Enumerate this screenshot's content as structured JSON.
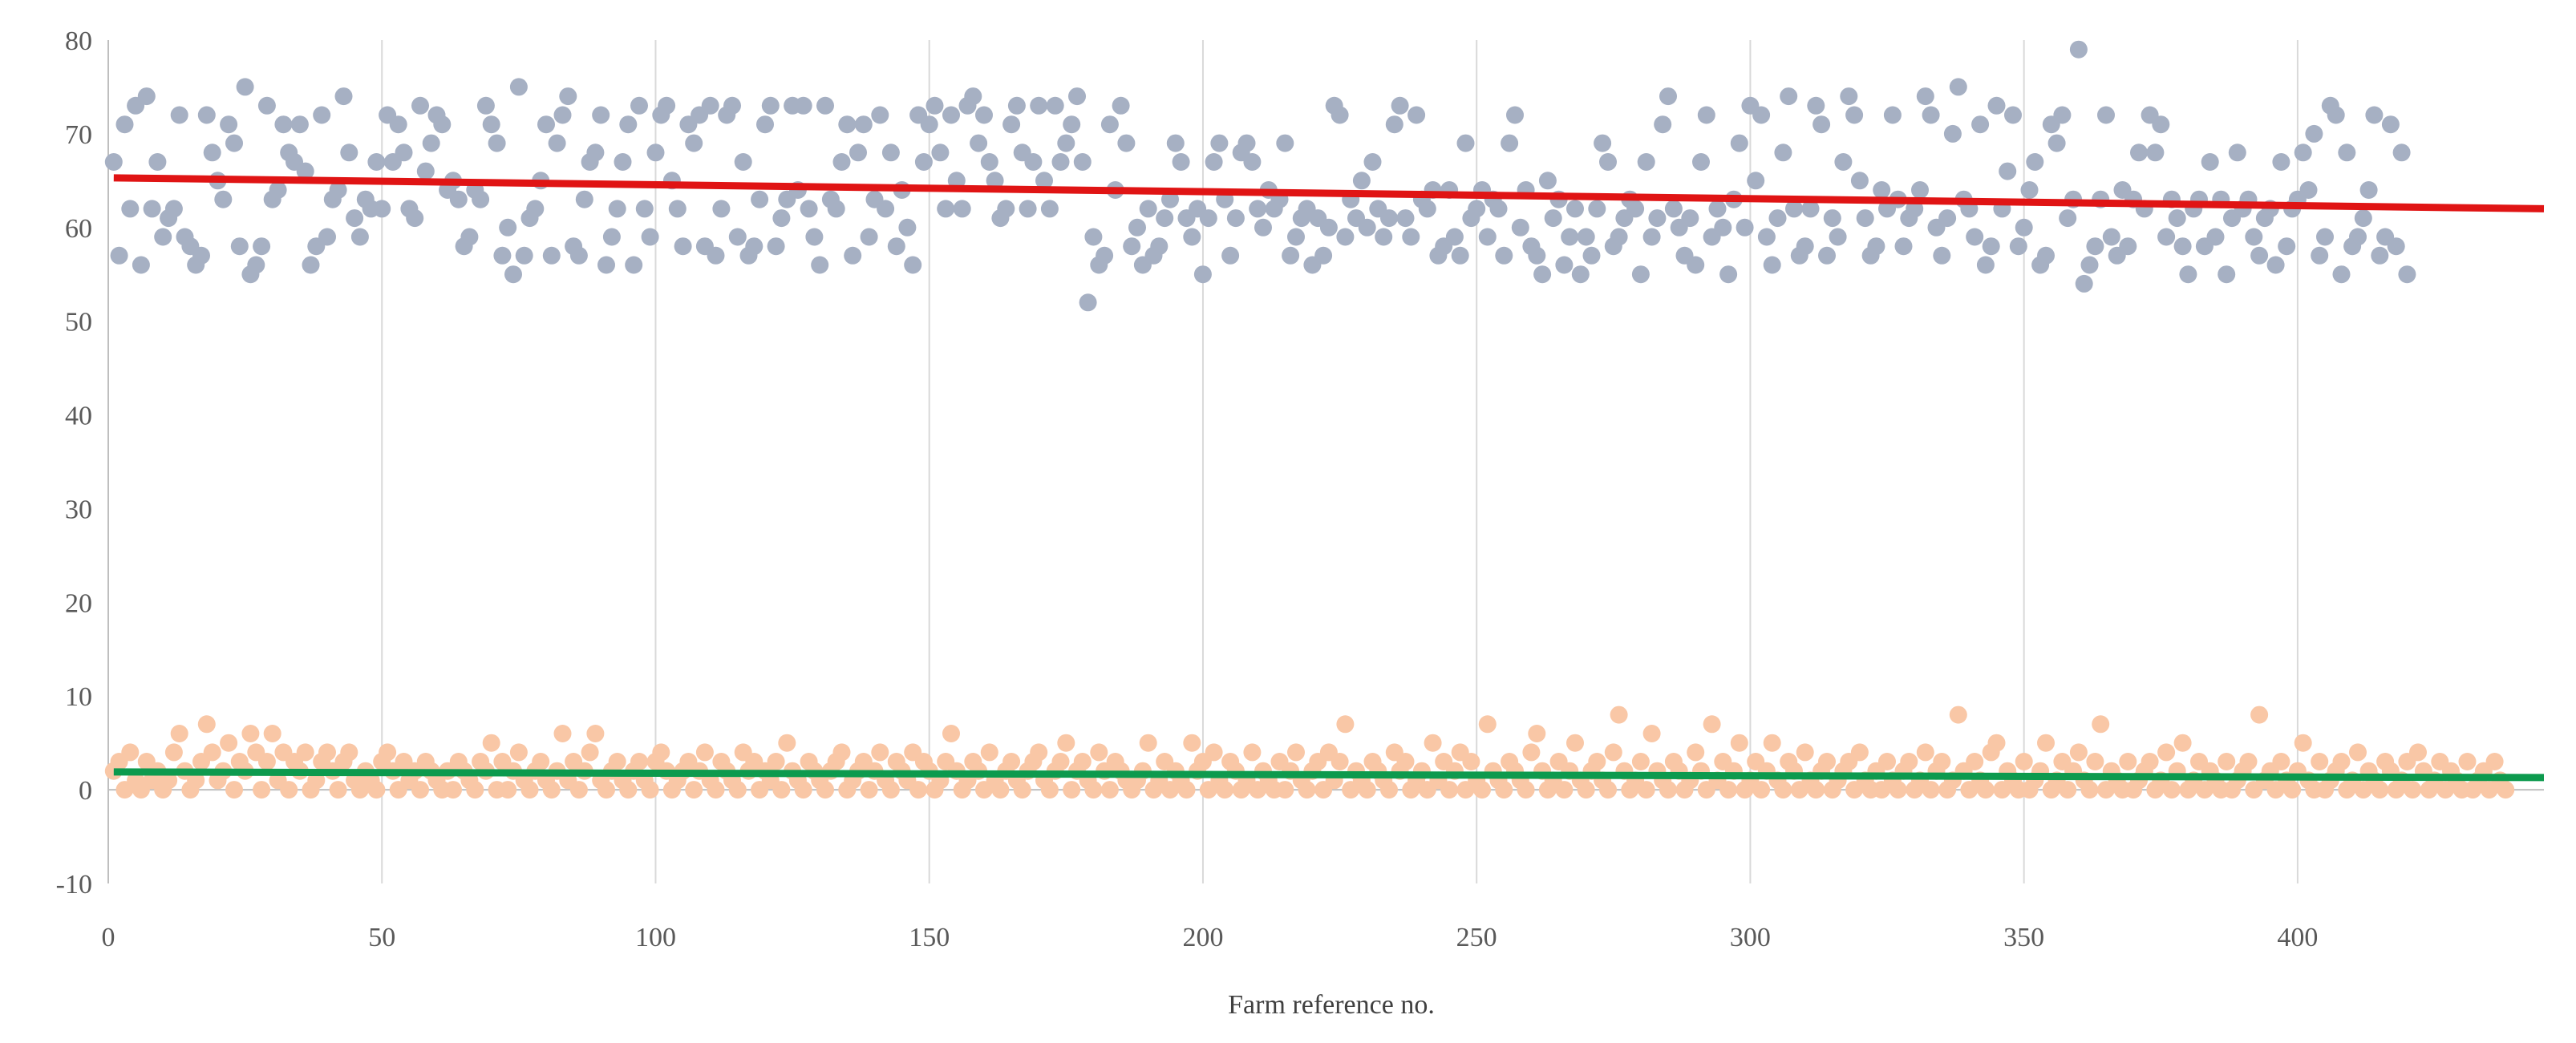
{
  "chart_data": {
    "type": "scatter",
    "title": "",
    "xlabel": "Farm reference no.",
    "ylabel": "",
    "xlim": [
      0,
      445
    ],
    "ylim": [
      -10,
      80
    ],
    "x_ticks": [
      0,
      50,
      100,
      150,
      200,
      250,
      300,
      350,
      400
    ],
    "y_ticks": [
      -10,
      0,
      10,
      20,
      30,
      40,
      50,
      60,
      70,
      80
    ],
    "grid": "vertical",
    "legend": "none",
    "colors": {
      "upper_points": "#a6b0c3",
      "lower_points": "#f9c7a6",
      "upper_trend": "#e01414",
      "lower_trend": "#0d9a4e",
      "grid": "#d9d9d9",
      "axis": "#bfbfbf"
    },
    "series": [
      {
        "role": "upper",
        "n": 445,
        "x_start": 1,
        "y": [
          67,
          57,
          71,
          62,
          73,
          56,
          74,
          62,
          67,
          59,
          61,
          62,
          72,
          59,
          58,
          56,
          57,
          72,
          68,
          65,
          63,
          71,
          69,
          58,
          75,
          55,
          56,
          58,
          73,
          63,
          64,
          71,
          68,
          67,
          71,
          66,
          56,
          58,
          72,
          59,
          63,
          64,
          74,
          68,
          61,
          59,
          63,
          62,
          67,
          62,
          72,
          67,
          71,
          68,
          62,
          61,
          73,
          66,
          69,
          72,
          71,
          64,
          65,
          63,
          58,
          59,
          64,
          63,
          73,
          71,
          69,
          57,
          60,
          55,
          75,
          57,
          61,
          62,
          65,
          71,
          57,
          69,
          72,
          74,
          58,
          57,
          63,
          67,
          68,
          72,
          56,
          59,
          62,
          67,
          71,
          56,
          73,
          62,
          59,
          68,
          72,
          73,
          65,
          62,
          58,
          71,
          69,
          72,
          58,
          73,
          57,
          62,
          72,
          73,
          59,
          67,
          57,
          58,
          63,
          71,
          73,
          58,
          61,
          63,
          73,
          64,
          73,
          62,
          59,
          56,
          73,
          63,
          62,
          67,
          71,
          57,
          68,
          71,
          59,
          63,
          72,
          62,
          68,
          58,
          64,
          60,
          56,
          72,
          67,
          71,
          73,
          68,
          62,
          72,
          65,
          62,
          73,
          74,
          69,
          72,
          67,
          65,
          61,
          62,
          71,
          73,
          68,
          62,
          67,
          73,
          65,
          62,
          73,
          67,
          69,
          71,
          74,
          67,
          52,
          59,
          56,
          57,
          71,
          64,
          73,
          69,
          58,
          60,
          56,
          62,
          57,
          58,
          61,
          63,
          69,
          67,
          61,
          59,
          62,
          55,
          61,
          67,
          69,
          63,
          57,
          61,
          68,
          69,
          67,
          62,
          60,
          64,
          62,
          63,
          69,
          57,
          59,
          61,
          62,
          56,
          61,
          57,
          60,
          73,
          72,
          59,
          63,
          61,
          65,
          60,
          67,
          62,
          59,
          61,
          71,
          73,
          61,
          59,
          72,
          63,
          62,
          64,
          57,
          58,
          64,
          59,
          57,
          69,
          61,
          62,
          64,
          59,
          63,
          62,
          57,
          69,
          72,
          60,
          64,
          58,
          57,
          55,
          65,
          61,
          63,
          56,
          59,
          62,
          55,
          59,
          57,
          62,
          69,
          67,
          58,
          59,
          61,
          63,
          62,
          55,
          67,
          59,
          61,
          71,
          74,
          62,
          60,
          57,
          61,
          56,
          67,
          72,
          59,
          62,
          60,
          55,
          63,
          69,
          60,
          73,
          65,
          72,
          59,
          56,
          61,
          68,
          74,
          62,
          57,
          58,
          62,
          73,
          71,
          57,
          61,
          59,
          67,
          74,
          72,
          65,
          61,
          57,
          58,
          64,
          62,
          72,
          63,
          58,
          61,
          62,
          64,
          74,
          72,
          60,
          57,
          61,
          70,
          75,
          63,
          62,
          59,
          71,
          56,
          58,
          73,
          62,
          66,
          72,
          58,
          60,
          64,
          67,
          56,
          57,
          71,
          69,
          72,
          61,
          63,
          79,
          54,
          56,
          58,
          63,
          72,
          59,
          57,
          64,
          58,
          63,
          68,
          62,
          72,
          68,
          71,
          59,
          63,
          61,
          58,
          55,
          62,
          63,
          58,
          67,
          59,
          63,
          55,
          61,
          68,
          62,
          63,
          59,
          57,
          61,
          62,
          56,
          67,
          58,
          62,
          63,
          68,
          64,
          70,
          57,
          59,
          73,
          72,
          55,
          68,
          58,
          59,
          61,
          64,
          72,
          57,
          59,
          71,
          58,
          68,
          55
        ]
      },
      {
        "role": "lower",
        "n": 445,
        "x_start": 1,
        "y": [
          2,
          3,
          0,
          4,
          1,
          0,
          3,
          1,
          2,
          0,
          1,
          4,
          6,
          2,
          0,
          1,
          3,
          7,
          4,
          1,
          2,
          5,
          0,
          3,
          2,
          6,
          4,
          0,
          3,
          6,
          1,
          4,
          0,
          3,
          2,
          4,
          0,
          1,
          3,
          4,
          2,
          0,
          3,
          4,
          1,
          0,
          2,
          1,
          0,
          3,
          4,
          2,
          0,
          3,
          1,
          2,
          0,
          3,
          2,
          1,
          0,
          2,
          0,
          3,
          2,
          1,
          0,
          3,
          2,
          5,
          0,
          3,
          0,
          2,
          4,
          1,
          0,
          2,
          3,
          1,
          0,
          2,
          6,
          1,
          3,
          0,
          2,
          4,
          6,
          1,
          0,
          2,
          3,
          1,
          0,
          2,
          3,
          1,
          0,
          3,
          4,
          2,
          0,
          1,
          2,
          3,
          0,
          2,
          4,
          1,
          0,
          3,
          2,
          1,
          0,
          4,
          2,
          3,
          0,
          2,
          1,
          3,
          0,
          5,
          2,
          1,
          0,
          3,
          2,
          1,
          0,
          2,
          3,
          4,
          0,
          1,
          2,
          3,
          0,
          2,
          4,
          1,
          0,
          3,
          2,
          1,
          4,
          0,
          3,
          2,
          0,
          1,
          3,
          6,
          2,
          0,
          1,
          3,
          2,
          0,
          4,
          1,
          0,
          2,
          3,
          1,
          0,
          2,
          3,
          4,
          1,
          0,
          2,
          3,
          5,
          0,
          2,
          3,
          1,
          0,
          4,
          2,
          0,
          3,
          2,
          1,
          0,
          1,
          2,
          5,
          0,
          1,
          3,
          0,
          2,
          1,
          0,
          5,
          2,
          3,
          0,
          4,
          1,
          0,
          3,
          2,
          0,
          1,
          4,
          0,
          2,
          1,
          0,
          3,
          0,
          2,
          4,
          1,
          0,
          2,
          3,
          0,
          4,
          1,
          3,
          7,
          0,
          2,
          1,
          0,
          3,
          2,
          1,
          0,
          4,
          2,
          3,
          0,
          1,
          2,
          0,
          5,
          1,
          3,
          0,
          2,
          4,
          0,
          3,
          1,
          0,
          7,
          2,
          1,
          0,
          3,
          2,
          1,
          0,
          4,
          6,
          2,
          0,
          1,
          3,
          0,
          2,
          5,
          1,
          0,
          2,
          3,
          1,
          0,
          4,
          8,
          2,
          0,
          1,
          3,
          0,
          6,
          2,
          1,
          0,
          3,
          2,
          0,
          1,
          4,
          2,
          0,
          7,
          1,
          3,
          0,
          2,
          5,
          0,
          1,
          3,
          0,
          2,
          5,
          1,
          0,
          3,
          2,
          0,
          4,
          1,
          0,
          2,
          3,
          0,
          1,
          2,
          3,
          0,
          4,
          1,
          0,
          2,
          0,
          3,
          1,
          0,
          2,
          3,
          0,
          1,
          4,
          0,
          2,
          3,
          0,
          1,
          8,
          2,
          0,
          3,
          1,
          0,
          4,
          5,
          0,
          2,
          1,
          0,
          3,
          0,
          1,
          2,
          5,
          0,
          1,
          3,
          0,
          2,
          4,
          1,
          0,
          3,
          7,
          0,
          2,
          1,
          0,
          3,
          0,
          1,
          2,
          3,
          0,
          1,
          4,
          0,
          2,
          5,
          0,
          1,
          3,
          0,
          2,
          1,
          0,
          3,
          0,
          1,
          2,
          3,
          0,
          8,
          1,
          2,
          0,
          3,
          1,
          0,
          2,
          5,
          1,
          0,
          3,
          0,
          1,
          2,
          3,
          0,
          1,
          4,
          0,
          2,
          1,
          0,
          3,
          2,
          0,
          1,
          3,
          0,
          4,
          2,
          0,
          1,
          3,
          0,
          2,
          1,
          0,
          3,
          0,
          1,
          2,
          0,
          3,
          1,
          0
        ]
      }
    ],
    "trendlines": [
      {
        "role": "upper",
        "x": [
          1,
          445
        ],
        "y": [
          65.3,
          62.0
        ]
      },
      {
        "role": "lower",
        "x": [
          1,
          445
        ],
        "y": [
          1.9,
          1.3
        ]
      }
    ]
  }
}
